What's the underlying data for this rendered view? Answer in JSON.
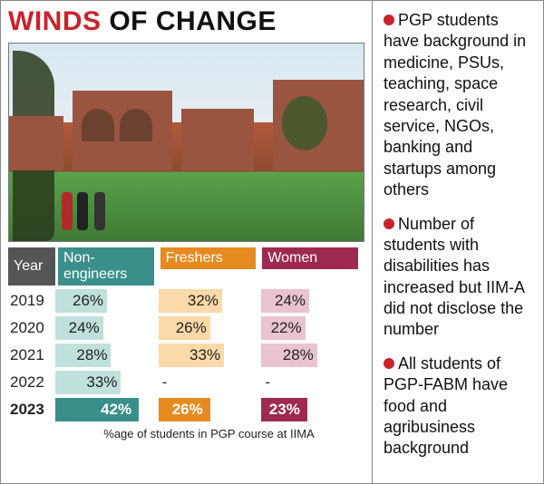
{
  "headline": {
    "word1": "WINDS",
    "word2": "OF CHANGE"
  },
  "chart": {
    "type": "bar",
    "headers": {
      "year": "Year",
      "cols": [
        "Non-engineers",
        "Freshers",
        "Women"
      ]
    },
    "header_colors": [
      "#3b8f8a",
      "#e68a1f",
      "#9e2a52"
    ],
    "bar_colors_light": [
      "#bfe0db",
      "#fbd9a8",
      "#e9c3cf"
    ],
    "bar_colors_dark": [
      "#3b8f8a",
      "#e68a1f",
      "#9e2a52"
    ],
    "year_header_bg": "#555555",
    "max_value": 50,
    "rows": [
      {
        "year": "2019",
        "bold": false,
        "dark": false,
        "values": [
          26,
          32,
          24
        ],
        "labels": [
          "26%",
          "32%",
          "24%"
        ]
      },
      {
        "year": "2020",
        "bold": false,
        "dark": false,
        "values": [
          24,
          26,
          22
        ],
        "labels": [
          "24%",
          "26%",
          "22%"
        ]
      },
      {
        "year": "2021",
        "bold": false,
        "dark": false,
        "values": [
          28,
          33,
          28
        ],
        "labels": [
          "28%",
          "33%",
          "28%"
        ]
      },
      {
        "year": "2022",
        "bold": false,
        "dark": false,
        "values": [
          33,
          null,
          null
        ],
        "labels": [
          "33%",
          "-",
          "-"
        ]
      },
      {
        "year": "2023",
        "bold": true,
        "dark": true,
        "values": [
          42,
          26,
          23
        ],
        "labels": [
          "42%",
          "26%",
          "23%"
        ]
      }
    ],
    "footnote": "%age of students in PGP course at IIMA"
  },
  "bullets": [
    "PGP students have background in medicine, PSUs, teaching, space research, civil service, NGOs, banking and startups among others",
    "Number of students with disabilities has increased but IIM-A did not disclose the number",
    "All students of PGP-FABM have food and agribusiness background"
  ]
}
